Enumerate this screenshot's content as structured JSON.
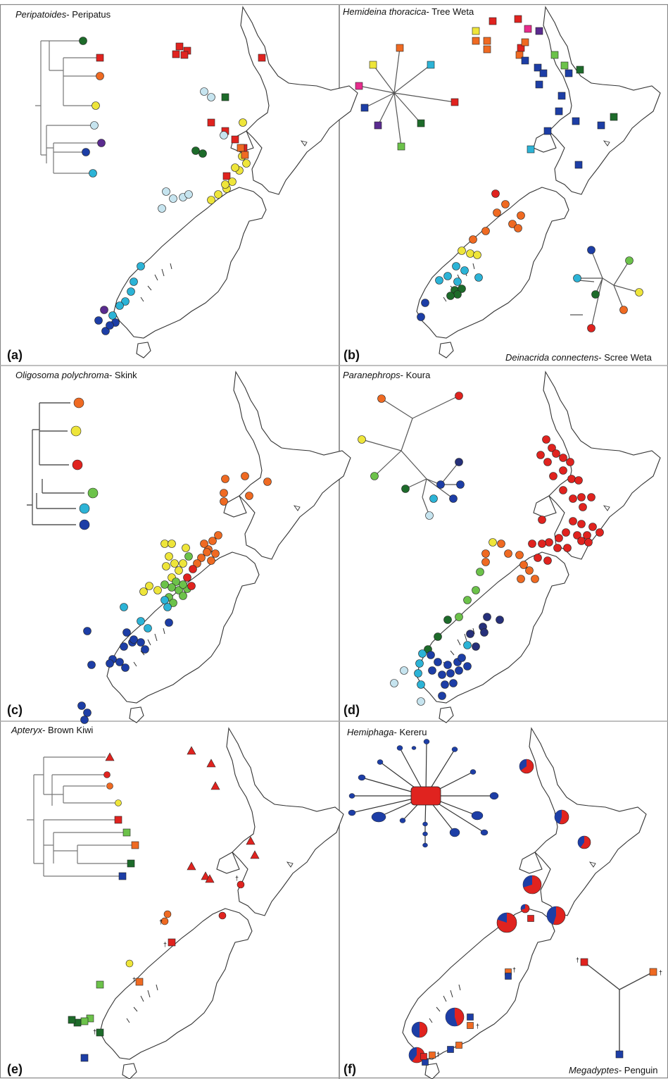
{
  "colors": {
    "red": "#e0231f",
    "orange": "#ef6a22",
    "yellow": "#eee53a",
    "lightblue": "#c6e4ef",
    "cyan": "#2cb3d6",
    "blue": "#1d3ea6",
    "purple": "#5a2b8f",
    "darkgreen": "#1d6b2a",
    "green": "#6cc24a",
    "magenta": "#e62c8c",
    "navy": "#26307a"
  },
  "panels": [
    {
      "letter": "(a)",
      "genus": "Peripatoides",
      "common": "- Peripatus"
    },
    {
      "letter": "(b)",
      "genus": "Hemideina thoracica",
      "common": "- Tree Weta",
      "extra_genus": "Deinacrida connectens",
      "extra_common": "- Scree Weta"
    },
    {
      "letter": "(c)",
      "genus": "Oligosoma polychroma",
      "common": "- Skink"
    },
    {
      "letter": "(d)",
      "genus": "Paranephrops",
      "common": "- Koura"
    },
    {
      "letter": "(e)",
      "genus": "Apteryx",
      "common": "- Brown Kiwi"
    },
    {
      "letter": "(f)",
      "genus": "Hemiphaga",
      "common": "- Kereru",
      "extra_genus": "Megadyptes",
      "extra_common": "- Penguin"
    }
  ],
  "dagger": "†"
}
